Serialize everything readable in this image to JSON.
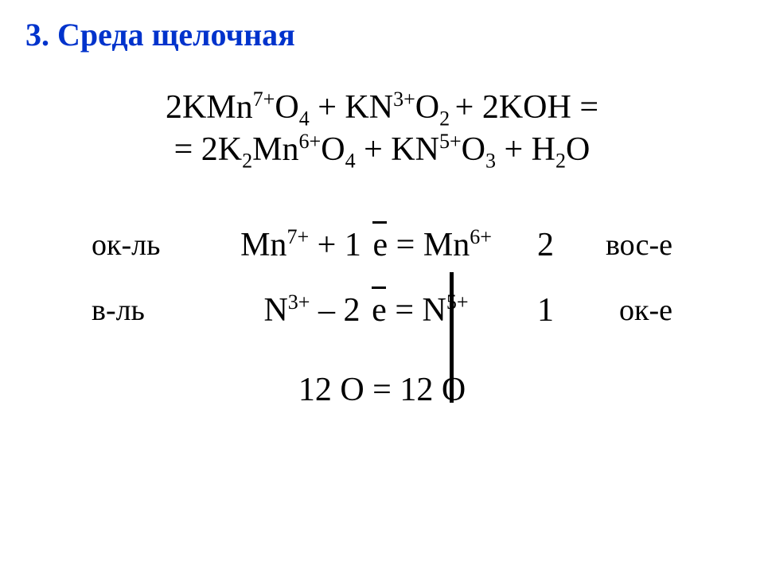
{
  "title": {
    "text": "3. Среда щелочная",
    "color": "#0033cc",
    "fontsize": 40,
    "bold": true
  },
  "equation": {
    "line1_html": "2KMn<sup>7+</sup>O<sub>4</sub> + KN<sup>3+</sup>O<sub>2 </sub>+ 2KOH =",
    "line2_html": "= 2K<sub>2</sub>Mn<sup>6+</sup>O<sub>4</sub> + KN<sup>5+</sup>O<sub>3</sub> + H<sub>2</sub>O",
    "fontsize": 42,
    "color": "#000000"
  },
  "half_reactions": {
    "divider_color": "#000000",
    "rows": [
      {
        "left_label": "ок-ль",
        "half_html": "Mn<sup>7+</sup> + 1<span class=\"enspace\"></span><span class=\"ebar\">е</span> = Mn<sup>6+</sup>",
        "factor": "2",
        "right_label": "вос-е"
      },
      {
        "left_label": "в-ль",
        "half_html": "N<sup>3+</sup> – 2<span class=\"enspace\"></span><span class=\"ebar\">е</span> = N<sup>5+</sup>",
        "factor": "1",
        "right_label": "ок-е"
      }
    ],
    "fontsize": 42,
    "label_fontsize": 38
  },
  "balance_check": {
    "text": "12 О = 12 О",
    "fontsize": 42
  }
}
